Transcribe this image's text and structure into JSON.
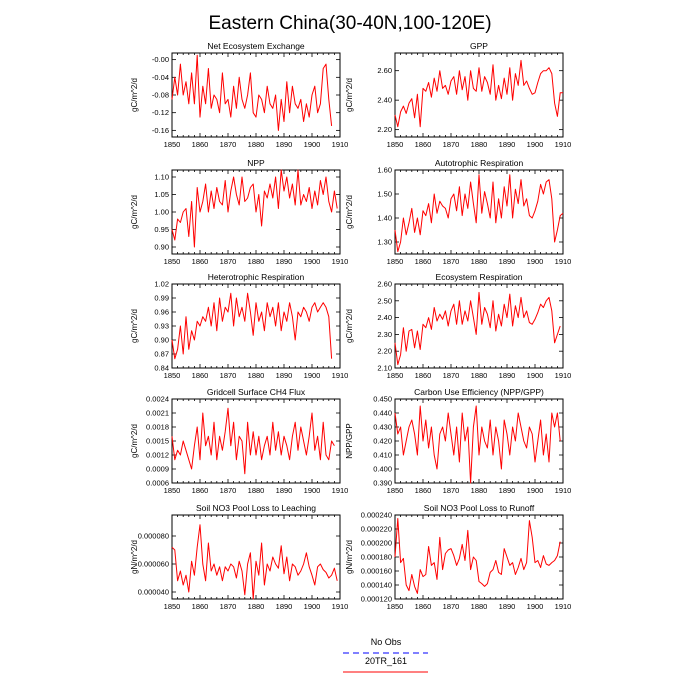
{
  "figure_title": "Eastern China(30-40N,100-120E)",
  "colors": {
    "model": "#ff0000",
    "obs": "#0000ff",
    "frame": "#000000"
  },
  "legend": [
    {
      "label": "No Obs",
      "color": "#0000ff",
      "style": "dashed"
    },
    {
      "label": "20TR_161",
      "color": "#ff0000",
      "style": "solid"
    }
  ],
  "chart_data": [
    {
      "type": "line",
      "title": "Net Ecosystem Exchange",
      "ylabel": "gC/m^2/d",
      "xlim": [
        1850,
        1910
      ],
      "ylim": [
        -0.175,
        0.015
      ],
      "xticks": [
        1850,
        1860,
        1870,
        1880,
        1890,
        1900,
        1910
      ],
      "yticks": [
        -0.16,
        -0.12,
        -0.08,
        -0.04,
        0.0
      ],
      "ytick_labels": [
        "-0.16",
        "-0.12",
        "-0.08",
        "-0.04",
        "-0.00"
      ],
      "x_start": 1850,
      "values": [
        -0.09,
        -0.04,
        -0.08,
        -0.01,
        -0.08,
        -0.05,
        -0.1,
        -0.03,
        -0.1,
        0.01,
        -0.13,
        -0.06,
        -0.1,
        -0.02,
        -0.11,
        -0.08,
        -0.09,
        -0.12,
        -0.03,
        -0.1,
        -0.09,
        -0.13,
        -0.06,
        -0.11,
        -0.04,
        -0.09,
        -0.11,
        -0.08,
        -0.03,
        -0.12,
        -0.13,
        -0.08,
        -0.09,
        -0.12,
        -0.06,
        -0.1,
        -0.11,
        -0.08,
        -0.16,
        -0.09,
        -0.14,
        -0.05,
        -0.12,
        -0.06,
        -0.1,
        -0.11,
        -0.09,
        -0.14,
        -0.1,
        -0.13,
        -0.08,
        -0.06,
        -0.12,
        -0.1,
        -0.02,
        -0.01,
        -0.09,
        -0.15
      ]
    },
    {
      "type": "line",
      "title": "GPP",
      "ylabel": "gC/m^2/d",
      "xlim": [
        1850,
        1910
      ],
      "ylim": [
        2.15,
        2.72
      ],
      "xticks": [
        1850,
        1860,
        1870,
        1880,
        1890,
        1900,
        1910
      ],
      "yticks": [
        2.2,
        2.4,
        2.6
      ],
      "ytick_labels": [
        "2.20",
        "2.40",
        "2.60"
      ],
      "x_start": 1850,
      "values": [
        2.3,
        2.22,
        2.32,
        2.36,
        2.31,
        2.38,
        2.41,
        2.28,
        2.44,
        2.22,
        2.48,
        2.46,
        2.52,
        2.42,
        2.55,
        2.46,
        2.6,
        2.48,
        2.5,
        2.44,
        2.53,
        2.56,
        2.44,
        2.6,
        2.47,
        2.56,
        2.4,
        2.6,
        2.48,
        2.46,
        2.62,
        2.46,
        2.56,
        2.52,
        2.44,
        2.64,
        2.4,
        2.5,
        2.41,
        2.55,
        2.44,
        2.62,
        2.4,
        2.58,
        2.5,
        2.67,
        2.5,
        2.53,
        2.48,
        2.44,
        2.45,
        2.52,
        2.58,
        2.6,
        2.6,
        2.62,
        2.58,
        2.38,
        2.29,
        2.45,
        2.45
      ]
    },
    {
      "type": "line",
      "title": "NPP",
      "ylabel": "gC/m^2/d",
      "xlim": [
        1850,
        1910
      ],
      "ylim": [
        0.88,
        1.12
      ],
      "xticks": [
        1850,
        1860,
        1870,
        1880,
        1890,
        1900,
        1910
      ],
      "yticks": [
        0.9,
        0.95,
        1.0,
        1.05,
        1.1
      ],
      "ytick_labels": [
        "0.90",
        "0.95",
        "1.00",
        "1.05",
        "1.10"
      ],
      "x_start": 1850,
      "values": [
        0.95,
        0.92,
        0.98,
        0.97,
        1.0,
        1.01,
        0.93,
        1.03,
        0.9,
        1.07,
        1.0,
        1.03,
        1.08,
        1.0,
        1.06,
        1.01,
        1.07,
        1.03,
        1.02,
        1.09,
        1.0,
        1.06,
        1.1,
        1.05,
        1.02,
        1.1,
        1.03,
        1.04,
        1.07,
        1.08,
        1.0,
        1.05,
        0.96,
        1.06,
        1.04,
        1.08,
        1.04,
        1.1,
        1.01,
        1.12,
        1.06,
        1.1,
        1.04,
        1.08,
        1.02,
        1.12,
        1.02,
        1.05,
        1.03,
        1.07,
        1.01,
        1.06,
        1.02,
        1.09,
        1.05,
        1.1,
        1.03,
        1.0,
        1.06,
        1.01
      ]
    },
    {
      "type": "line",
      "title": "Autotrophic Respiration",
      "ylabel": "gC/m^2/d",
      "xlim": [
        1850,
        1910
      ],
      "ylim": [
        1.25,
        1.6
      ],
      "xticks": [
        1850,
        1860,
        1870,
        1880,
        1890,
        1900,
        1910
      ],
      "yticks": [
        1.3,
        1.4,
        1.5,
        1.6
      ],
      "ytick_labels": [
        "1.30",
        "1.40",
        "1.50",
        "1.60"
      ],
      "x_start": 1850,
      "values": [
        1.35,
        1.26,
        1.3,
        1.4,
        1.33,
        1.38,
        1.44,
        1.34,
        1.4,
        1.33,
        1.43,
        1.41,
        1.46,
        1.38,
        1.5,
        1.42,
        1.47,
        1.45,
        1.44,
        1.4,
        1.48,
        1.5,
        1.43,
        1.53,
        1.41,
        1.5,
        1.44,
        1.55,
        1.46,
        1.38,
        1.58,
        1.42,
        1.51,
        1.46,
        1.4,
        1.55,
        1.38,
        1.48,
        1.4,
        1.53,
        1.45,
        1.58,
        1.4,
        1.52,
        1.46,
        1.56,
        1.45,
        1.48,
        1.41,
        1.4,
        1.43,
        1.47,
        1.54,
        1.5,
        1.55,
        1.56,
        1.48,
        1.3,
        1.35,
        1.41,
        1.42
      ]
    },
    {
      "type": "line",
      "title": "Heterotrophic Respiration",
      "ylabel": "gC/m^2/d",
      "xlim": [
        1850,
        1910
      ],
      "ylim": [
        0.84,
        1.02
      ],
      "xticks": [
        1850,
        1860,
        1870,
        1880,
        1890,
        1900,
        1910
      ],
      "yticks": [
        0.84,
        0.87,
        0.9,
        0.93,
        0.96,
        0.99,
        1.02
      ],
      "ytick_labels": [
        "0.84",
        "0.87",
        "0.90",
        "0.93",
        "0.96",
        "0.99",
        "1.02"
      ],
      "x_start": 1850,
      "values": [
        0.9,
        0.86,
        0.88,
        0.93,
        0.87,
        0.95,
        0.88,
        0.92,
        0.9,
        0.94,
        0.93,
        0.95,
        0.94,
        0.97,
        0.93,
        0.98,
        0.92,
        0.99,
        0.94,
        0.97,
        0.96,
        1.0,
        0.93,
        0.99,
        0.95,
        0.97,
        0.94,
        1.0,
        0.96,
        0.91,
        0.98,
        0.94,
        0.96,
        0.92,
        0.98,
        0.95,
        0.97,
        0.93,
        0.98,
        0.92,
        0.96,
        0.94,
        0.98,
        0.95,
        0.9,
        0.96,
        0.95,
        0.97,
        0.96,
        0.94,
        0.97,
        0.98,
        0.96,
        0.97,
        0.98,
        0.97,
        0.95,
        0.86
      ]
    },
    {
      "type": "line",
      "title": "Ecosystem Respiration",
      "ylabel": "gC/m^2/d",
      "xlim": [
        1850,
        1910
      ],
      "ylim": [
        2.1,
        2.6
      ],
      "xticks": [
        1850,
        1860,
        1870,
        1880,
        1890,
        1900,
        1910
      ],
      "yticks": [
        2.1,
        2.2,
        2.3,
        2.4,
        2.5,
        2.6
      ],
      "ytick_labels": [
        "2.10",
        "2.20",
        "2.30",
        "2.40",
        "2.50",
        "2.60"
      ],
      "x_start": 1850,
      "values": [
        2.25,
        2.12,
        2.18,
        2.34,
        2.2,
        2.32,
        2.33,
        2.22,
        2.32,
        2.21,
        2.36,
        2.34,
        2.4,
        2.33,
        2.46,
        2.38,
        2.42,
        2.39,
        2.44,
        2.35,
        2.44,
        2.48,
        2.36,
        2.5,
        2.36,
        2.44,
        2.38,
        2.5,
        2.4,
        2.3,
        2.55,
        2.36,
        2.46,
        2.42,
        2.34,
        2.5,
        2.32,
        2.42,
        2.35,
        2.48,
        2.4,
        2.54,
        2.35,
        2.47,
        2.4,
        2.52,
        2.4,
        2.44,
        2.37,
        2.36,
        2.39,
        2.43,
        2.48,
        2.46,
        2.5,
        2.52,
        2.44,
        2.25,
        2.3,
        2.35
      ]
    },
    {
      "type": "line",
      "title": "Gridcell Surface CH4 Flux",
      "ylabel": "gC/m^2/d",
      "xlim": [
        1850,
        1910
      ],
      "ylim": [
        0.0006,
        0.0024
      ],
      "xticks": [
        1850,
        1860,
        1870,
        1880,
        1890,
        1900,
        1910
      ],
      "yticks": [
        0.0006,
        0.0009,
        0.0012,
        0.0015,
        0.0018,
        0.0021,
        0.0024
      ],
      "ytick_labels": [
        "0.0006",
        "0.0009",
        "0.0012",
        "0.0015",
        "0.0018",
        "0.0021",
        "0.0024"
      ],
      "x_start": 1850,
      "values": [
        0.0016,
        0.0011,
        0.0013,
        0.0012,
        0.0015,
        0.0013,
        0.0011,
        0.0009,
        0.0014,
        0.0018,
        0.0011,
        0.0021,
        0.0014,
        0.0016,
        0.0012,
        0.0019,
        0.0011,
        0.0016,
        0.0013,
        0.0017,
        0.0022,
        0.0014,
        0.0019,
        0.0011,
        0.0016,
        0.0015,
        0.0008,
        0.0019,
        0.0012,
        0.0017,
        0.0012,
        0.0016,
        0.0011,
        0.0014,
        0.0016,
        0.0012,
        0.0019,
        0.0013,
        0.0017,
        0.0012,
        0.0016,
        0.0014,
        0.0011,
        0.0016,
        0.0019,
        0.0013,
        0.0018,
        0.0015,
        0.0012,
        0.0016,
        0.0021,
        0.0013,
        0.0016,
        0.0011,
        0.0019,
        0.0012,
        0.0011,
        0.0015,
        0.0014
      ]
    },
    {
      "type": "line",
      "title": "Carbon Use Efficiency (NPP/GPP)",
      "ylabel": "NPP/GPP",
      "xlim": [
        1850,
        1910
      ],
      "ylim": [
        0.39,
        0.45
      ],
      "xticks": [
        1850,
        1860,
        1870,
        1880,
        1890,
        1900,
        1910
      ],
      "yticks": [
        0.39,
        0.4,
        0.41,
        0.42,
        0.43,
        0.44,
        0.45
      ],
      "ytick_labels": [
        "0.390",
        "0.400",
        "0.410",
        "0.420",
        "0.430",
        "0.440",
        "0.450"
      ],
      "x_start": 1850,
      "values": [
        0.44,
        0.425,
        0.43,
        0.41,
        0.42,
        0.43,
        0.435,
        0.425,
        0.41,
        0.445,
        0.42,
        0.435,
        0.415,
        0.43,
        0.41,
        0.4,
        0.425,
        0.43,
        0.42,
        0.44,
        0.425,
        0.41,
        0.43,
        0.405,
        0.44,
        0.42,
        0.43,
        0.39,
        0.43,
        0.445,
        0.41,
        0.43,
        0.42,
        0.415,
        0.435,
        0.41,
        0.43,
        0.42,
        0.4,
        0.435,
        0.425,
        0.41,
        0.43,
        0.42,
        0.44,
        0.43,
        0.42,
        0.415,
        0.43,
        0.425,
        0.405,
        0.42,
        0.435,
        0.41,
        0.425,
        0.405,
        0.44,
        0.43,
        0.44,
        0.42
      ]
    },
    {
      "type": "line",
      "title": "Soil NO3 Pool Loss to Leaching",
      "ylabel": "gN/m^2/d",
      "xlim": [
        1850,
        1910
      ],
      "ylim": [
        3.5e-05,
        9.5e-05
      ],
      "xticks": [
        1850,
        1860,
        1870,
        1880,
        1890,
        1900,
        1910
      ],
      "yticks": [
        4e-05,
        6e-05,
        8e-05
      ],
      "ytick_labels": [
        "0.000040",
        "0.000060",
        "0.000080"
      ],
      "x_start": 1850,
      "values": [
        7.2e-05,
        7e-05,
        4.8e-05,
        5.5e-05,
        4.5e-05,
        5.2e-05,
        4e-05,
        6.2e-05,
        5.2e-05,
        7.2e-05,
        8.8e-05,
        6e-05,
        4.8e-05,
        7.5e-05,
        5.5e-05,
        6e-05,
        5.2e-05,
        5.8e-05,
        4.8e-05,
        5.8e-05,
        5.5e-05,
        6e-05,
        5.8e-05,
        5e-05,
        6.2e-05,
        5.5e-05,
        3.8e-05,
        6e-05,
        6.8e-05,
        3.5e-05,
        6.2e-05,
        5.2e-05,
        7.5e-05,
        4.5e-05,
        6e-05,
        5.5e-05,
        6.5e-05,
        6e-05,
        5.7e-05,
        7.3e-05,
        5.3e-05,
        6.5e-05,
        4.8e-05,
        6e-05,
        5.8e-05,
        5.2e-05,
        5.5e-05,
        6e-05,
        6.8e-05,
        5.8e-05,
        5.2e-05,
        4.5e-05,
        5.8e-05,
        6e-05,
        5.6e-05,
        5.4e-05,
        5e-05,
        5.2e-05,
        5.7e-05,
        4.8e-05
      ]
    },
    {
      "type": "line",
      "title": "Soil NO3 Pool Loss to Runoff",
      "ylabel": "gN/m^2/d",
      "xlim": [
        1850,
        1910
      ],
      "ylim": [
        0.00012,
        0.00024
      ],
      "xticks": [
        1850,
        1860,
        1870,
        1880,
        1890,
        1900,
        1910
      ],
      "yticks": [
        0.00012,
        0.00014,
        0.00016,
        0.00018,
        0.0002,
        0.00022,
        0.00024
      ],
      "ytick_labels": [
        "0.000120",
        "0.000140",
        "0.000160",
        "0.000180",
        "0.000200",
        "0.000220",
        "0.000240"
      ],
      "x_start": 1850,
      "values": [
        0.00018,
        0.000235,
        0.000172,
        0.000178,
        0.00014,
        0.000132,
        0.000155,
        0.000138,
        0.000128,
        0.000162,
        0.000152,
        0.000155,
        0.000195,
        0.000168,
        0.000172,
        0.000148,
        0.000208,
        0.000162,
        0.000185,
        0.00019,
        0.000192,
        0.000182,
        0.000168,
        0.000178,
        0.000198,
        0.000175,
        0.000218,
        0.000162,
        0.00018,
        0.000175,
        0.000145,
        0.000142,
        0.000138,
        0.000142,
        0.000158,
        0.000162,
        0.000175,
        0.000158,
        0.000155,
        0.000192,
        0.00018,
        0.000168,
        0.000172,
        0.000155,
        0.000165,
        0.000178,
        0.000162,
        0.000172,
        0.000232,
        0.000208,
        0.000172,
        0.000175,
        0.000165,
        0.000182,
        0.00017,
        0.000168,
        0.000172,
        0.000175,
        0.000182,
        0.000202
      ]
    }
  ]
}
